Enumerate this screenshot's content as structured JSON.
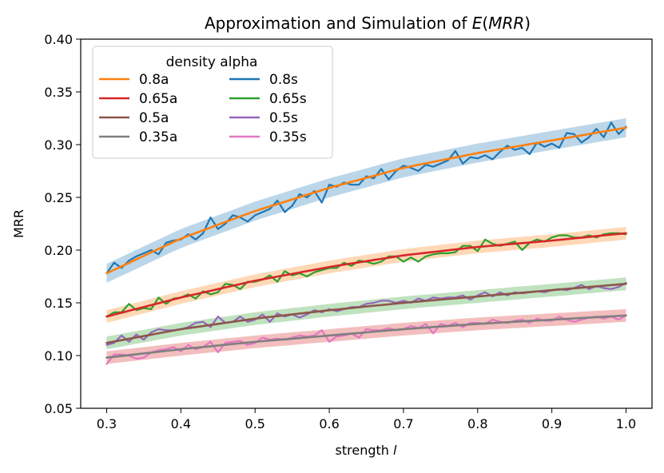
{
  "chart_data": {
    "type": "line",
    "title": "Approximation and Simulation of E(MRR)",
    "title_parts": {
      "prefix": "Approximation and Simulation of ",
      "func": "E",
      "open": "(",
      "arg": "MRR",
      "close": ")"
    },
    "xlabel": "strength",
    "xlabel_var": "l",
    "ylabel": "MRR",
    "xlim": [
      0.265,
      1.035
    ],
    "ylim": [
      0.05,
      0.4
    ],
    "x_ticks": [
      0.3,
      0.4,
      0.5,
      0.6,
      0.7,
      0.8,
      0.9,
      1.0
    ],
    "x_tick_labels": [
      "0.3",
      "0.4",
      "0.5",
      "0.6",
      "0.7",
      "0.8",
      "0.9",
      "1.0"
    ],
    "y_ticks": [
      0.05,
      0.1,
      0.15,
      0.2,
      0.25,
      0.3,
      0.35,
      0.4
    ],
    "y_tick_labels": [
      "0.05",
      "0.10",
      "0.15",
      "0.20",
      "0.25",
      "0.30",
      "0.35",
      "0.40"
    ],
    "grid": false,
    "legend": {
      "title": "density alpha",
      "placement": "top-left",
      "columns": 2
    },
    "series": [
      {
        "name": "0.8a",
        "kind": "approximation",
        "color": "#ff7f0e",
        "band_color": "#1f77b4",
        "x": [
          0.3,
          0.4,
          0.5,
          0.6,
          0.7,
          0.8,
          0.9,
          1.0
        ],
        "values": [
          0.178,
          0.211,
          0.237,
          0.259,
          0.278,
          0.292,
          0.304,
          0.316
        ]
      },
      {
        "name": "0.65a",
        "kind": "approximation",
        "color": "#d62728",
        "band_color": "#ff7f0e",
        "x": [
          0.3,
          0.4,
          0.5,
          0.6,
          0.7,
          0.8,
          0.9,
          1.0
        ],
        "values": [
          0.137,
          0.155,
          0.171,
          0.184,
          0.195,
          0.203,
          0.209,
          0.216
        ]
      },
      {
        "name": "0.5a",
        "kind": "approximation",
        "color": "#8c564b",
        "band_color": "#2ca02c",
        "x": [
          0.3,
          0.4,
          0.5,
          0.6,
          0.7,
          0.8,
          0.9,
          1.0
        ],
        "values": [
          0.112,
          0.125,
          0.135,
          0.143,
          0.15,
          0.156,
          0.162,
          0.168
        ]
      },
      {
        "name": "0.35a",
        "kind": "approximation",
        "color": "#7f7f7f",
        "band_color": "#d62728",
        "x": [
          0.3,
          0.4,
          0.5,
          0.6,
          0.7,
          0.8,
          0.9,
          1.0
        ],
        "values": [
          0.098,
          0.106,
          0.113,
          0.119,
          0.125,
          0.13,
          0.134,
          0.138
        ]
      },
      {
        "name": "0.8s",
        "kind": "simulation",
        "color": "#1f77b4",
        "x": [
          0.3,
          0.31,
          0.32,
          0.33,
          0.34,
          0.35,
          0.36,
          0.37,
          0.38,
          0.39,
          0.4,
          0.41,
          0.42,
          0.43,
          0.44,
          0.45,
          0.46,
          0.47,
          0.48,
          0.49,
          0.5,
          0.51,
          0.52,
          0.53,
          0.54,
          0.55,
          0.56,
          0.57,
          0.58,
          0.59,
          0.6,
          0.61,
          0.62,
          0.63,
          0.64,
          0.65,
          0.66,
          0.67,
          0.68,
          0.69,
          0.7,
          0.71,
          0.72,
          0.73,
          0.74,
          0.75,
          0.76,
          0.77,
          0.78,
          0.79,
          0.8,
          0.81,
          0.82,
          0.83,
          0.84,
          0.85,
          0.86,
          0.87,
          0.88,
          0.89,
          0.9,
          0.91,
          0.92,
          0.93,
          0.94,
          0.95,
          0.96,
          0.97,
          0.98,
          0.99,
          1.0
        ],
        "values": [
          0.178,
          0.188,
          0.183,
          0.19,
          0.194,
          0.197,
          0.2,
          0.196,
          0.207,
          0.209,
          0.21,
          0.215,
          0.21,
          0.216,
          0.231,
          0.22,
          0.225,
          0.233,
          0.231,
          0.227,
          0.233,
          0.236,
          0.239,
          0.247,
          0.236,
          0.242,
          0.253,
          0.25,
          0.256,
          0.245,
          0.262,
          0.26,
          0.264,
          0.262,
          0.262,
          0.27,
          0.268,
          0.277,
          0.267,
          0.275,
          0.28,
          0.278,
          0.275,
          0.281,
          0.279,
          0.282,
          0.285,
          0.294,
          0.282,
          0.288,
          0.287,
          0.29,
          0.286,
          0.293,
          0.299,
          0.295,
          0.297,
          0.291,
          0.302,
          0.298,
          0.301,
          0.297,
          0.311,
          0.31,
          0.302,
          0.307,
          0.315,
          0.307,
          0.321,
          0.31,
          0.317
        ]
      },
      {
        "name": "0.65s",
        "kind": "simulation",
        "color": "#2ca02c",
        "x": [
          0.3,
          0.31,
          0.32,
          0.33,
          0.34,
          0.35,
          0.36,
          0.37,
          0.38,
          0.39,
          0.4,
          0.41,
          0.42,
          0.43,
          0.44,
          0.45,
          0.46,
          0.47,
          0.48,
          0.49,
          0.5,
          0.51,
          0.52,
          0.53,
          0.54,
          0.55,
          0.56,
          0.57,
          0.58,
          0.59,
          0.6,
          0.61,
          0.62,
          0.63,
          0.64,
          0.65,
          0.66,
          0.67,
          0.68,
          0.69,
          0.7,
          0.71,
          0.72,
          0.73,
          0.74,
          0.75,
          0.76,
          0.77,
          0.78,
          0.79,
          0.8,
          0.81,
          0.82,
          0.83,
          0.84,
          0.85,
          0.86,
          0.87,
          0.88,
          0.89,
          0.9,
          0.91,
          0.92,
          0.93,
          0.94,
          0.95,
          0.96,
          0.97,
          0.98,
          0.99,
          1.0
        ],
        "values": [
          0.137,
          0.141,
          0.141,
          0.149,
          0.143,
          0.145,
          0.144,
          0.155,
          0.149,
          0.154,
          0.155,
          0.158,
          0.154,
          0.161,
          0.158,
          0.16,
          0.168,
          0.167,
          0.163,
          0.17,
          0.17,
          0.172,
          0.176,
          0.17,
          0.18,
          0.176,
          0.178,
          0.175,
          0.179,
          0.181,
          0.183,
          0.183,
          0.188,
          0.185,
          0.19,
          0.189,
          0.187,
          0.189,
          0.194,
          0.194,
          0.189,
          0.193,
          0.189,
          0.194,
          0.196,
          0.197,
          0.197,
          0.198,
          0.204,
          0.204,
          0.199,
          0.21,
          0.206,
          0.204,
          0.206,
          0.208,
          0.2,
          0.207,
          0.21,
          0.208,
          0.212,
          0.214,
          0.214,
          0.212,
          0.212,
          0.214,
          0.212,
          0.215,
          0.216,
          0.216,
          0.215
        ]
      },
      {
        "name": "0.5s",
        "kind": "simulation",
        "color": "#9467bd",
        "x": [
          0.3,
          0.31,
          0.32,
          0.33,
          0.34,
          0.35,
          0.36,
          0.37,
          0.38,
          0.39,
          0.4,
          0.41,
          0.42,
          0.43,
          0.44,
          0.45,
          0.46,
          0.47,
          0.48,
          0.49,
          0.5,
          0.51,
          0.52,
          0.53,
          0.54,
          0.55,
          0.56,
          0.57,
          0.58,
          0.59,
          0.6,
          0.61,
          0.62,
          0.63,
          0.64,
          0.65,
          0.66,
          0.67,
          0.68,
          0.69,
          0.7,
          0.71,
          0.72,
          0.73,
          0.74,
          0.75,
          0.76,
          0.77,
          0.78,
          0.79,
          0.8,
          0.81,
          0.82,
          0.83,
          0.84,
          0.85,
          0.86,
          0.87,
          0.88,
          0.89,
          0.9,
          0.91,
          0.92,
          0.93,
          0.94,
          0.95,
          0.96,
          0.97,
          0.98,
          0.99,
          1.0
        ],
        "values": [
          0.11,
          0.112,
          0.119,
          0.113,
          0.12,
          0.115,
          0.122,
          0.125,
          0.124,
          0.124,
          0.125,
          0.127,
          0.131,
          0.132,
          0.127,
          0.137,
          0.131,
          0.132,
          0.137,
          0.132,
          0.134,
          0.139,
          0.132,
          0.14,
          0.137,
          0.139,
          0.136,
          0.139,
          0.143,
          0.141,
          0.144,
          0.142,
          0.144,
          0.146,
          0.146,
          0.149,
          0.15,
          0.152,
          0.152,
          0.15,
          0.152,
          0.15,
          0.154,
          0.152,
          0.155,
          0.154,
          0.155,
          0.155,
          0.157,
          0.153,
          0.157,
          0.16,
          0.156,
          0.16,
          0.157,
          0.16,
          0.159,
          0.16,
          0.161,
          0.16,
          0.162,
          0.163,
          0.162,
          0.164,
          0.167,
          0.163,
          0.166,
          0.164,
          0.163,
          0.165,
          0.169
        ]
      },
      {
        "name": "0.35s",
        "kind": "simulation",
        "color": "#e377c2",
        "x": [
          0.3,
          0.31,
          0.32,
          0.33,
          0.34,
          0.35,
          0.36,
          0.37,
          0.38,
          0.39,
          0.4,
          0.41,
          0.42,
          0.43,
          0.44,
          0.45,
          0.46,
          0.47,
          0.48,
          0.49,
          0.5,
          0.51,
          0.52,
          0.53,
          0.54,
          0.55,
          0.56,
          0.57,
          0.58,
          0.59,
          0.6,
          0.61,
          0.62,
          0.63,
          0.64,
          0.65,
          0.66,
          0.67,
          0.68,
          0.69,
          0.7,
          0.71,
          0.72,
          0.73,
          0.74,
          0.75,
          0.76,
          0.77,
          0.78,
          0.79,
          0.8,
          0.81,
          0.82,
          0.83,
          0.84,
          0.85,
          0.86,
          0.87,
          0.88,
          0.89,
          0.9,
          0.91,
          0.92,
          0.93,
          0.94,
          0.95,
          0.96,
          0.97,
          0.98,
          0.99,
          1.0
        ],
        "values": [
          0.092,
          0.101,
          0.101,
          0.1,
          0.097,
          0.098,
          0.103,
          0.105,
          0.106,
          0.108,
          0.104,
          0.11,
          0.106,
          0.108,
          0.113,
          0.103,
          0.112,
          0.113,
          0.114,
          0.11,
          0.112,
          0.117,
          0.115,
          0.116,
          0.115,
          0.117,
          0.119,
          0.118,
          0.119,
          0.124,
          0.113,
          0.118,
          0.119,
          0.121,
          0.117,
          0.125,
          0.124,
          0.124,
          0.126,
          0.124,
          0.125,
          0.128,
          0.126,
          0.13,
          0.121,
          0.13,
          0.128,
          0.131,
          0.127,
          0.131,
          0.131,
          0.13,
          0.134,
          0.132,
          0.131,
          0.133,
          0.134,
          0.131,
          0.135,
          0.133,
          0.133,
          0.137,
          0.134,
          0.132,
          0.134,
          0.136,
          0.137,
          0.135,
          0.137,
          0.134,
          0.138
        ]
      }
    ]
  }
}
